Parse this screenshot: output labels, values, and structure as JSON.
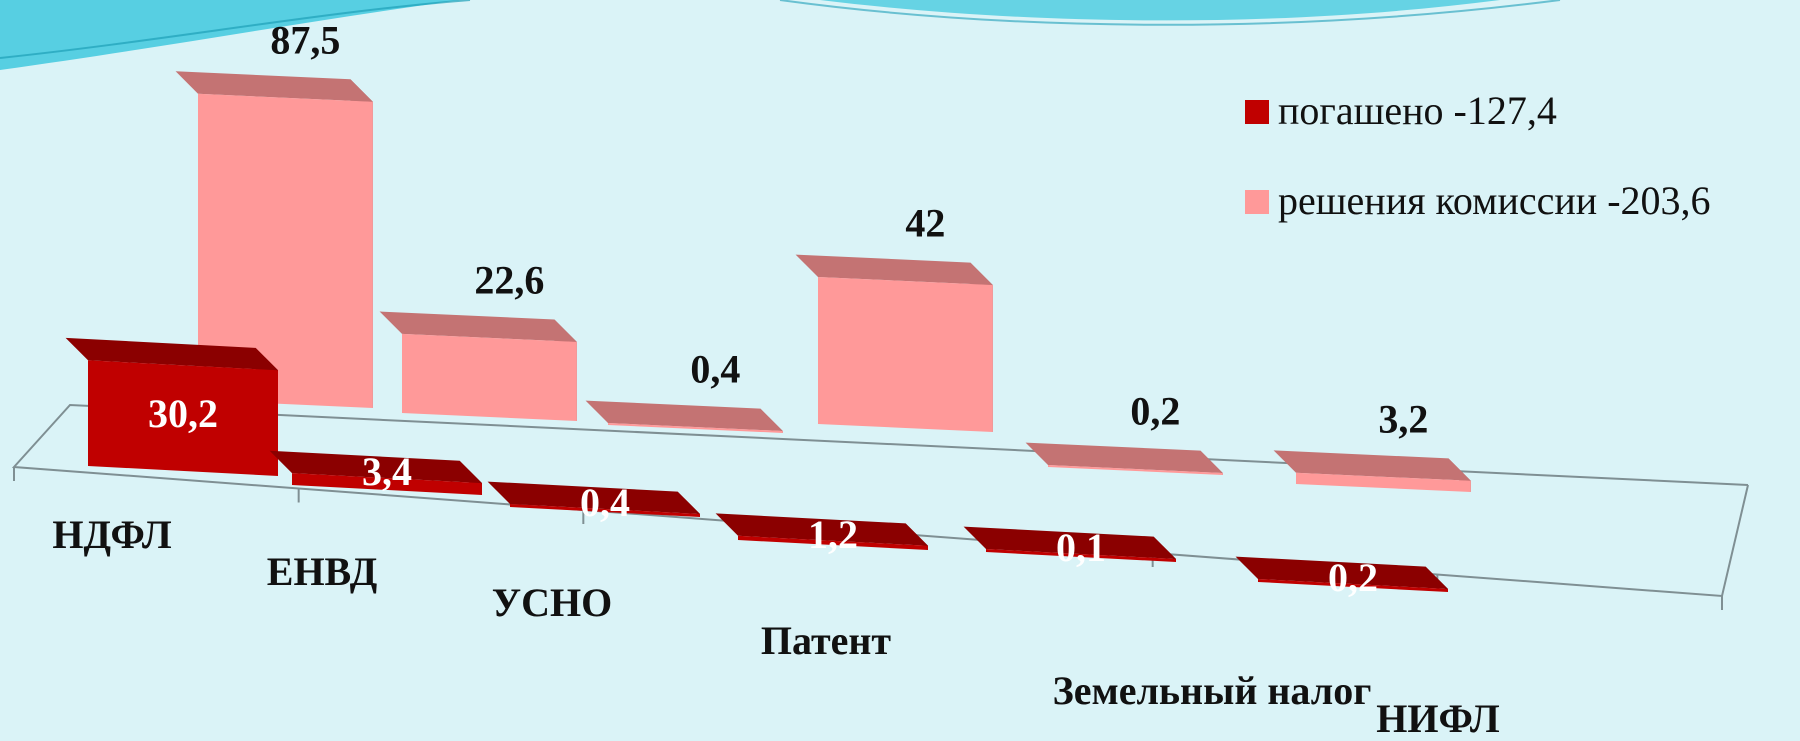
{
  "chart_data": {
    "type": "bar",
    "categories": [
      "НДФЛ",
      "ЕНВД",
      "УСНО",
      "Патент",
      "Земельный налог",
      "НИФЛ"
    ],
    "series": [
      {
        "name": "погашено -127,4",
        "values": [
          30.2,
          3.4,
          0.4,
          1.2,
          0.1,
          0.2
        ],
        "labels": [
          "30,2",
          "3,4",
          "0,4",
          "1,2",
          "0,1",
          "0,2"
        ]
      },
      {
        "name": "решения комиссии -203,6",
        "values": [
          87.5,
          22.6,
          0.4,
          42,
          0.2,
          3.2
        ],
        "labels": [
          "87,5",
          "22,6",
          "0,4",
          "42",
          "0,2",
          "3,2"
        ]
      }
    ],
    "legend": "top-right",
    "grid": false,
    "colors": {
      "series1_front": "#c00000",
      "series1_top": "#8b0000",
      "series1_side": "#7a0000",
      "series2_front": "#ff9999",
      "series2_top": "#c47373",
      "series2_side": "#a86060",
      "background": "#daf3f7",
      "decor_wave": "#3fc8de"
    }
  }
}
